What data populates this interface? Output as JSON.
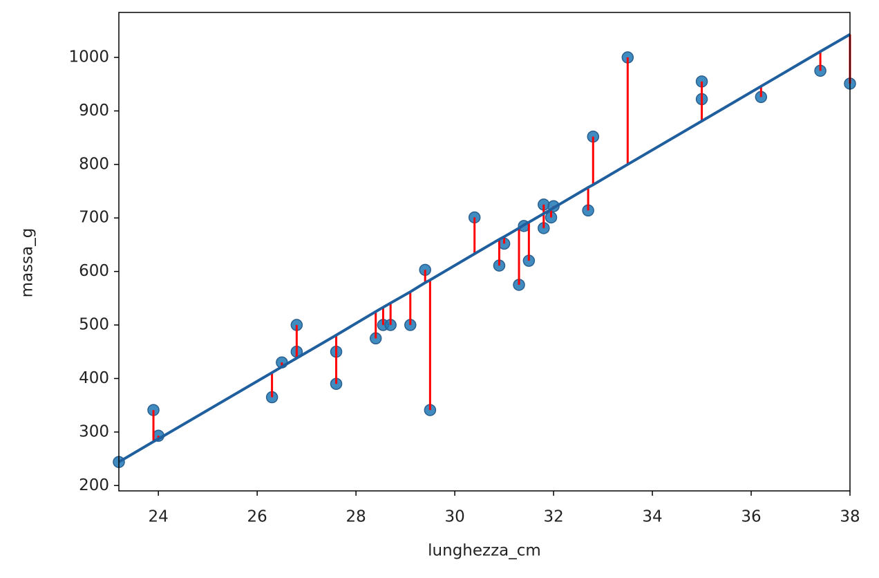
{
  "chart_data": {
    "type": "scatter",
    "xlabel": "lunghezza_cm",
    "ylabel": "massa_g",
    "x": [
      23.2,
      23.9,
      24.0,
      26.3,
      26.5,
      26.8,
      26.8,
      27.6,
      27.6,
      28.4,
      28.55,
      28.7,
      29.1,
      29.4,
      29.5,
      30.4,
      30.9,
      31.0,
      31.3,
      31.4,
      31.5,
      31.8,
      31.8,
      31.95,
      32.0,
      32.7,
      32.8,
      33.5,
      35.0,
      35.0,
      36.2,
      37.4,
      38.0
    ],
    "values": [
      244,
      341,
      293,
      365,
      430,
      500,
      450,
      450,
      390,
      475,
      500,
      500,
      500,
      603,
      341,
      701,
      611,
      652,
      575,
      685,
      620,
      725,
      681,
      701,
      722,
      714,
      852,
      1000,
      955,
      922,
      926,
      975,
      951
    ],
    "fitted": [
      244,
      282,
      287,
      411,
      422,
      438,
      438,
      481,
      481,
      525,
      533,
      541,
      562,
      579,
      584,
      633,
      660,
      665,
      681,
      687,
      692,
      708,
      708,
      716,
      719,
      757,
      762,
      800,
      881,
      881,
      946,
      1011,
      1043
    ],
    "color": "#1f77b4",
    "line_color": "#1f5f9e",
    "residual_color": "#ff0000",
    "xlim": [
      23.2,
      38
    ],
    "ylim": [
      190,
      1084
    ],
    "xticks": [
      24,
      26,
      28,
      30,
      32,
      34,
      36,
      38
    ],
    "yticks": [
      200,
      300,
      400,
      500,
      600,
      700,
      800,
      900,
      1000
    ]
  }
}
